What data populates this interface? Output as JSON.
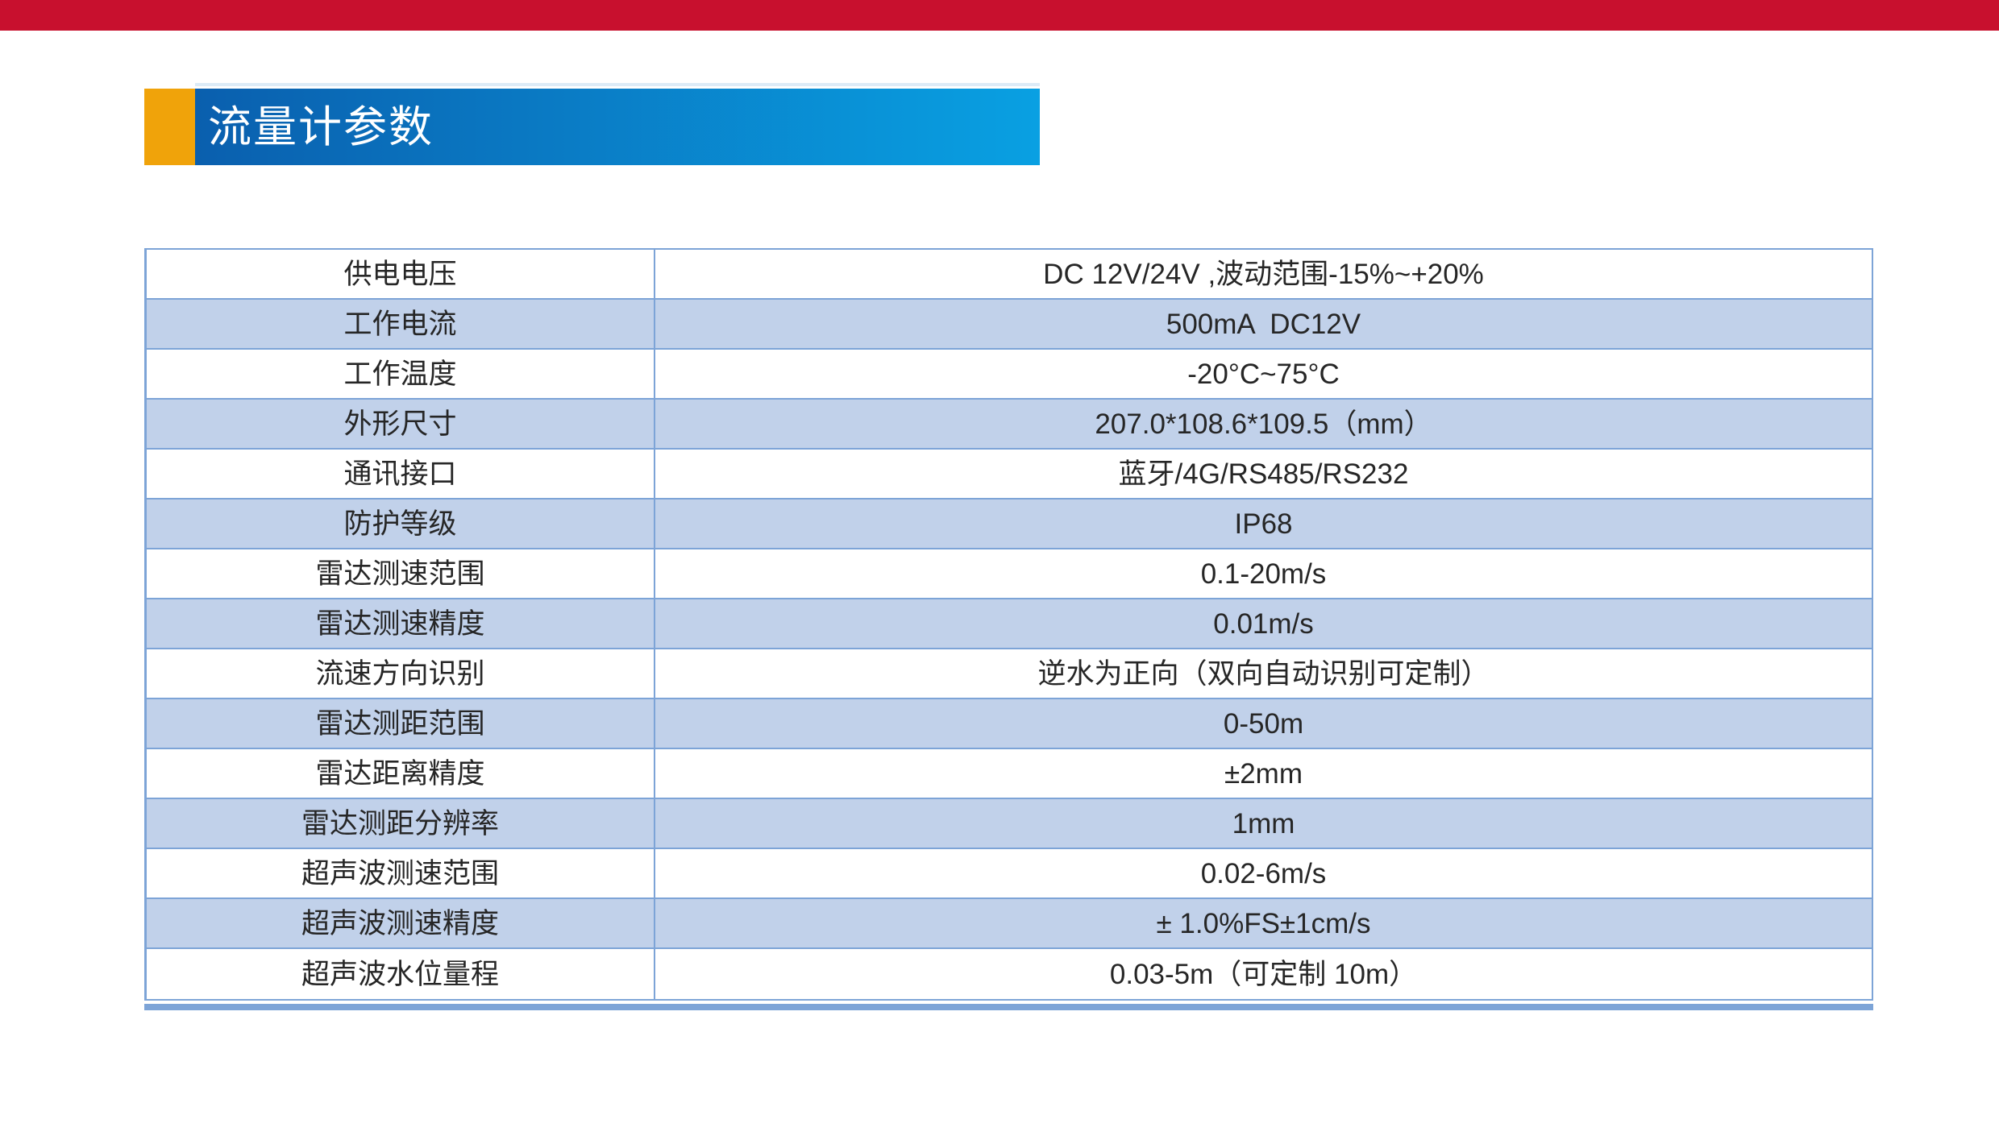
{
  "colors": {
    "page_bg": "#ffffff",
    "red_bar": "#c8102e",
    "orange_accent": "#f0a30a",
    "header_blue_left": "#0a5fae",
    "header_blue_right": "#09a0e2",
    "header_top_edge": "#dcebf7",
    "title_text": "#ffffff",
    "table_border": "#7da4d7",
    "row_alt_fill": "#c1d1ea",
    "body_text": "#262626"
  },
  "header": {
    "title": "流量计参数"
  },
  "table": {
    "rows": [
      {
        "label": "供电电压",
        "value": "DC 12V/24V ,波动范围-15%~+20%"
      },
      {
        "label": "工作电流",
        "value": "500mA  DC12V"
      },
      {
        "label": "工作温度",
        "value": "-20°C~75°C"
      },
      {
        "label": "外形尺寸",
        "value": "207.0*108.6*109.5（mm）"
      },
      {
        "label": "通讯接口",
        "value": "蓝牙/4G/RS485/RS232"
      },
      {
        "label": "防护等级",
        "value": "IP68"
      },
      {
        "label": "雷达测速范围",
        "value": "0.1-20m/s"
      },
      {
        "label": "雷达测速精度",
        "value": "0.01m/s"
      },
      {
        "label": "流速方向识别",
        "value": "逆水为正向（双向自动识别可定制）"
      },
      {
        "label": "雷达测距范围",
        "value": "0-50m"
      },
      {
        "label": "雷达距离精度",
        "value": "±2mm"
      },
      {
        "label": "雷达测距分辨率",
        "value": "1mm"
      },
      {
        "label": "超声波测速范围",
        "value": "0.02-6m/s"
      },
      {
        "label": "超声波测速精度",
        "value": "± 1.0%FS±1cm/s"
      },
      {
        "label": "超声波水位量程",
        "value": "0.03-5m（可定制 10m）"
      }
    ]
  }
}
